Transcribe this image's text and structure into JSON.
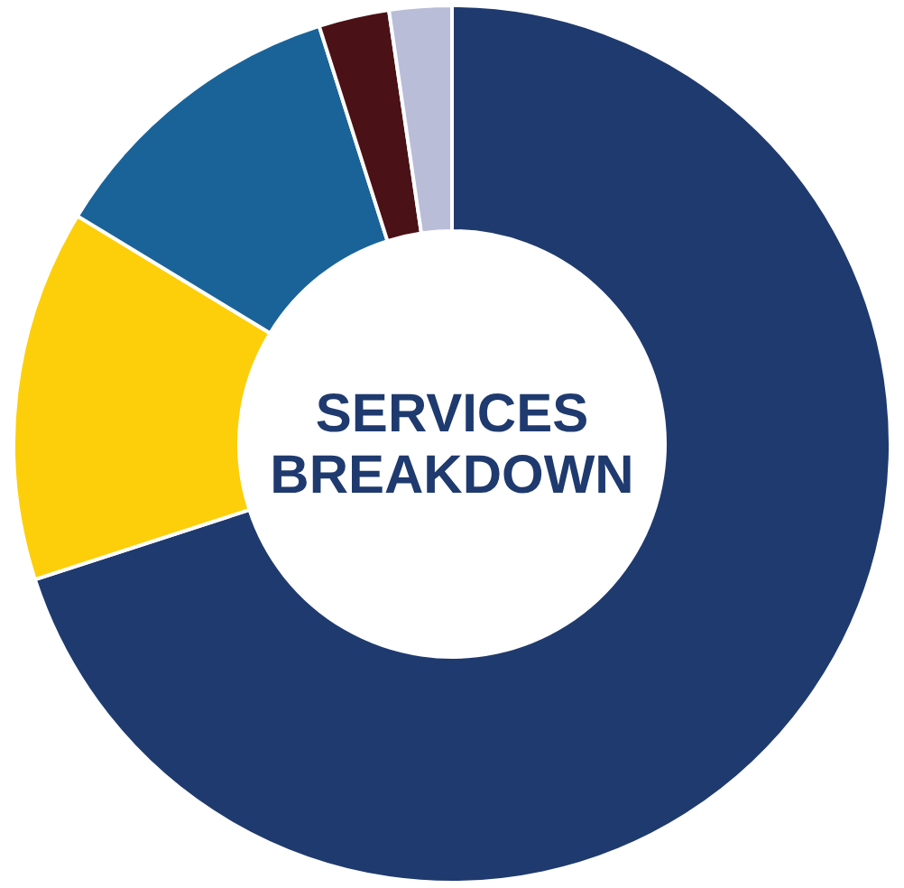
{
  "chart_data": {
    "type": "donut",
    "title": "SERVICES BREAKDOWN",
    "categories": [
      null,
      null,
      null,
      null,
      null
    ],
    "values": [
      70,
      13.7,
      11.4,
      2.6,
      2.3
    ],
    "colors": [
      "#1f3a6e",
      "#fccf0a",
      "#1a6399",
      "#4a1116",
      "#b9bdd8"
    ]
  }
}
